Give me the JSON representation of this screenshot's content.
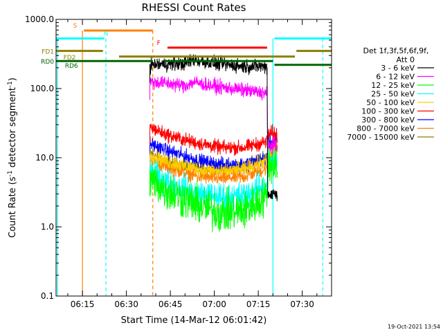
{
  "chart_data": {
    "type": "line",
    "title": "RHESSI Count Rates",
    "xlabel": "Start Time (14-Mar-12 06:01:42)",
    "ylabel_main": "Count Rate (s",
    "ylabel_sup1": "-1",
    "ylabel_mid": " detector segment",
    "ylabel_sup2": "-1",
    "ylabel_end": ")",
    "yscale": "log",
    "ylim": [
      0.1,
      1000
    ],
    "xlim_minutes": [
      6.0,
      100.0
    ],
    "x_ticks": [
      {
        "m": 15,
        "label": "06:15"
      },
      {
        "m": 30,
        "label": "06:30"
      },
      {
        "m": 45,
        "label": "06:45"
      },
      {
        "m": 60,
        "label": "07:00"
      },
      {
        "m": 75,
        "label": "07:15"
      },
      {
        "m": 90,
        "label": "07:30"
      }
    ],
    "y_ticks": [
      {
        "v": 0.1,
        "label": "0.1"
      },
      {
        "v": 1,
        "label": "1.0"
      },
      {
        "v": 10,
        "label": "10.0"
      },
      {
        "v": 100,
        "label": "100.0"
      },
      {
        "v": 1000,
        "label": "1000.0"
      }
    ],
    "legend": {
      "header1": "Det 1f,3f,5f,6f,9f,",
      "header2": "Att 0",
      "entries": [
        {
          "label": "3 - 6 keV",
          "color": "#000000"
        },
        {
          "label": "6 - 12 keV",
          "color": "#ff00ff"
        },
        {
          "label": "12 - 25 keV",
          "color": "#00ff00"
        },
        {
          "label": "25 - 50 keV",
          "color": "#00ffff"
        },
        {
          "label": "50 - 100 keV",
          "color": "#ffcc00"
        },
        {
          "label": "100 - 300 keV",
          "color": "#ff0000"
        },
        {
          "label": "300 - 800 keV",
          "color": "#0000ff"
        },
        {
          "label": "800 - 7000 keV",
          "color": "#ff8000"
        },
        {
          "label": "7000 - 15000 keV",
          "color": "#8b7d00"
        }
      ]
    },
    "series": [
      {
        "name": "3 - 6 keV",
        "color": "#000000",
        "x": [
          38,
          43,
          50,
          53,
          56,
          62,
          70,
          78
        ],
        "y": [
          220,
          225,
          230,
          260,
          245,
          225,
          210,
          210
        ],
        "noise": 0.05,
        "end_y": 3
      },
      {
        "name": "6 - 12 keV",
        "color": "#ff00ff",
        "x": [
          38,
          43,
          50,
          53,
          56,
          62,
          70,
          78
        ],
        "y": [
          125,
          120,
          110,
          125,
          115,
          105,
          95,
          85
        ],
        "noise": 0.05,
        "end_y": 15
      },
      {
        "name": "12 - 25 keV",
        "color": "#00ff00",
        "x": [
          38,
          43,
          50,
          55,
          62,
          70,
          78
        ],
        "y": [
          5,
          3.5,
          2.5,
          2,
          1.6,
          1.7,
          2.8
        ],
        "noise": 0.14,
        "end_y": 8
      },
      {
        "name": "25 - 50 keV",
        "color": "#00ffff",
        "x": [
          38,
          43,
          50,
          55,
          62,
          70,
          78
        ],
        "y": [
          6.5,
          4.5,
          3.5,
          3,
          2.7,
          2.8,
          4.2
        ],
        "noise": 0.1,
        "end_y": 9
      },
      {
        "name": "50 - 100 keV",
        "color": "#ffcc00",
        "x": [
          38,
          43,
          50,
          55,
          62,
          70,
          78
        ],
        "y": [
          11,
          9,
          7.5,
          6.8,
          6.3,
          6.8,
          9
        ],
        "noise": 0.05,
        "end_y": 11
      },
      {
        "name": "100 - 300 keV",
        "color": "#ff0000",
        "x": [
          38,
          43,
          50,
          55,
          62,
          70,
          78
        ],
        "y": [
          28,
          22,
          18,
          16,
          14,
          14,
          17
        ],
        "noise": 0.05,
        "end_y": 22
      },
      {
        "name": "300 - 800 keV",
        "color": "#0000ff",
        "x": [
          38,
          43,
          50,
          55,
          62,
          70,
          78
        ],
        "y": [
          16,
          13,
          10.5,
          9,
          8,
          8,
          10
        ],
        "noise": 0.05,
        "end_y": 17
      },
      {
        "name": "800 - 7000 keV",
        "color": "#ff8000",
        "x": [
          38,
          43,
          50,
          55,
          62,
          70,
          78
        ],
        "y": [
          9.5,
          7.5,
          6,
          5.3,
          5,
          5.3,
          7
        ],
        "noise": 0.05,
        "end_y": 16
      },
      {
        "name": "7000 - 15000 keV",
        "color": "#8b7d00",
        "x": [
          38,
          43,
          50,
          55,
          62,
          70,
          78
        ],
        "y": [
          12,
          9,
          7.5,
          7,
          6.8,
          7.5,
          10
        ],
        "noise": 0.05,
        "end_y": 12
      }
    ],
    "flags": [
      {
        "label": "S",
        "color": "#ff8000",
        "y": 690,
        "segments": [
          [
            15.5,
            39
          ]
        ],
        "label_at_m": 12.5
      },
      {
        "label": "N",
        "color": "#00ffff",
        "y": 530,
        "segments": [
          [
            6.0,
            22.5
          ],
          [
            80.5,
            100
          ]
        ],
        "label_at_m": 23
      },
      {
        "label": "F",
        "color": "#ff0000",
        "y": 390,
        "segments": [
          [
            44,
            78
          ]
        ],
        "label_at_m": 41
      },
      {
        "label": "FD1",
        "color": "#8b7d00",
        "y": 350,
        "segments": [
          [
            6.0,
            22
          ],
          [
            88,
            100
          ]
        ],
        "label_at_m": null
      },
      {
        "label": "FD2",
        "color": "#8b7d00",
        "y": 290,
        "segments": [
          [
            27.5,
            87.5
          ]
        ],
        "label_at_m": 8.5
      },
      {
        "label": "RD0",
        "color": "#006400",
        "y": 250,
        "segments": [
          [
            6.0,
            39
          ],
          [
            43,
            80
          ]
        ],
        "label_at_m": null
      },
      {
        "label": "RD6",
        "color": "#006400",
        "y": 220,
        "segments": [
          [
            80.5,
            100
          ]
        ],
        "label_at_m": 9
      }
    ],
    "vlines": [
      {
        "m": 15,
        "color": "#ff8000",
        "style": "solid",
        "y0": 0.1,
        "y1": 690
      },
      {
        "m": 23,
        "color": "#00ffff",
        "style": "dashed",
        "y0": 0.1,
        "y1": 530
      },
      {
        "m": 39,
        "color": "#ff8000",
        "style": "dashed",
        "y0": 0.1,
        "y1": 690
      },
      {
        "m": 80,
        "color": "#00ffff",
        "style": "solid",
        "y0": 0.1,
        "y1": 530
      },
      {
        "m": 97,
        "color": "#00ffff",
        "style": "dashed",
        "y0": 0.1,
        "y1": 530
      },
      {
        "m": 6.5,
        "color": "#00ffff",
        "style": "solid",
        "y0": 0.1,
        "y1": 530
      }
    ],
    "timestamp": "19-Oct-2021 13:54"
  }
}
